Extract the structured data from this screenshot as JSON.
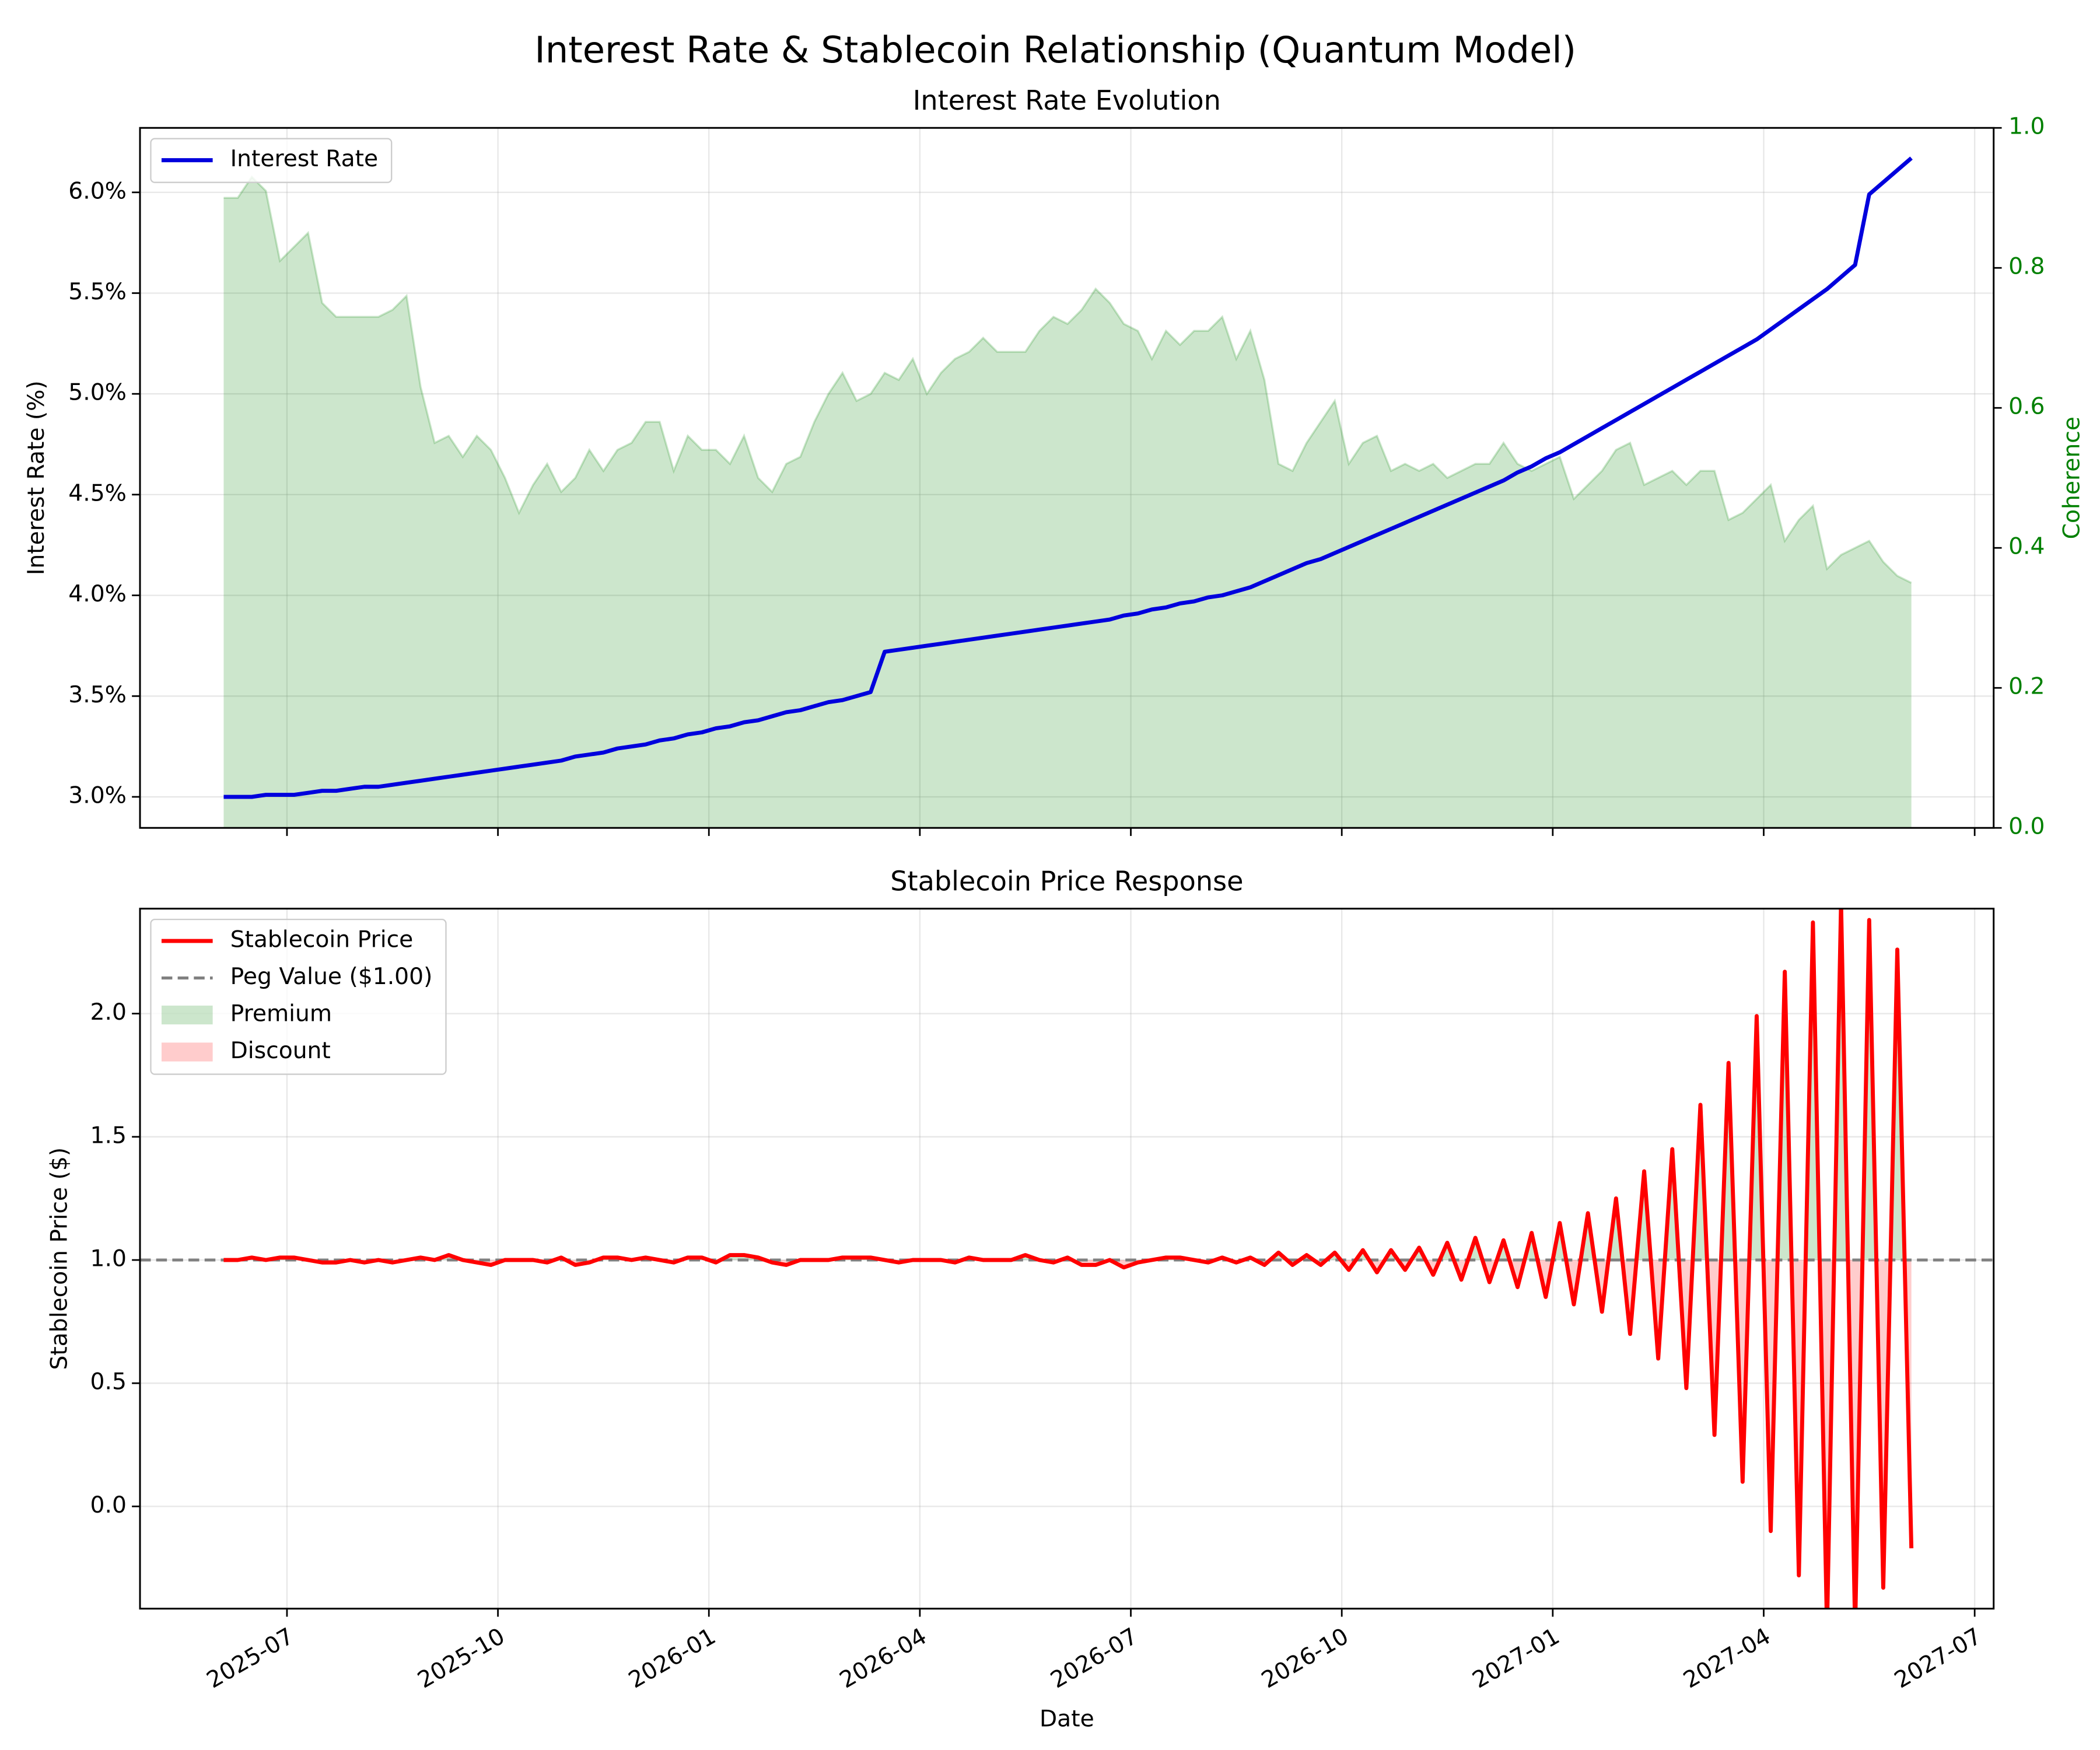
{
  "title": "Interest Rate & Stablecoin Relationship (Quantum Model)",
  "chart_data": [
    {
      "type": "line",
      "title": "Interest Rate Evolution",
      "y_label": "Interest Rate (%)",
      "y2_label": "Coherence",
      "ylim": [
        2.846,
        6.32
      ],
      "yticks": [
        {
          "value": 3.0,
          "label": "3.0%"
        },
        {
          "value": 3.5,
          "label": "3.5%"
        },
        {
          "value": 4.0,
          "label": "4.0%"
        },
        {
          "value": 4.5,
          "label": "4.5%"
        },
        {
          "value": 5.0,
          "label": "5.0%"
        },
        {
          "value": 5.5,
          "label": "5.5%"
        },
        {
          "value": 6.0,
          "label": "6.0%"
        }
      ],
      "y2lim": [
        0,
        1
      ],
      "y2ticks": [
        {
          "value": 0,
          "label": "0.0"
        },
        0.2,
        0.4,
        0.6,
        0.8,
        {
          "value": 1,
          "label": "1.0"
        }
      ],
      "y2_color": "#008000",
      "grid": true,
      "legend": "upper left",
      "series": [
        {
          "name": "Interest Rate",
          "color": "#0000dd",
          "values": [
            3.0,
            3.0,
            3.0,
            3.01,
            3.01,
            3.01,
            3.02,
            3.03,
            3.03,
            3.04,
            3.05,
            3.05,
            3.06,
            3.07,
            3.08,
            3.09,
            3.1,
            3.11,
            3.12,
            3.13,
            3.14,
            3.15,
            3.16,
            3.17,
            3.18,
            3.2,
            3.21,
            3.22,
            3.24,
            3.25,
            3.26,
            3.28,
            3.29,
            3.31,
            3.32,
            3.34,
            3.35,
            3.37,
            3.38,
            3.4,
            3.42,
            3.43,
            3.45,
            3.47,
            3.48,
            3.5,
            3.52,
            3.72,
            3.73,
            3.74,
            3.75,
            3.76,
            3.77,
            3.78,
            3.79,
            3.8,
            3.81,
            3.82,
            3.83,
            3.84,
            3.85,
            3.86,
            3.87,
            3.88,
            3.9,
            3.91,
            3.93,
            3.94,
            3.96,
            3.97,
            3.99,
            4.0,
            4.02,
            4.04,
            4.07,
            4.1,
            4.13,
            4.16,
            4.18,
            4.21,
            4.24,
            4.27,
            4.3,
            4.33,
            4.36,
            4.39,
            4.42,
            4.45,
            4.48,
            4.51,
            4.54,
            4.57,
            4.61,
            4.64,
            4.68,
            4.71,
            4.75,
            4.79,
            4.83,
            4.87,
            4.91,
            4.95,
            4.99,
            5.03,
            5.07,
            5.11,
            5.15,
            5.19,
            5.23,
            5.27,
            5.32,
            5.37,
            5.42,
            5.47,
            5.52,
            5.58,
            5.64,
            5.99,
            6.05,
            6.11,
            6.17
          ]
        },
        {
          "type": "area",
          "axis": "y2",
          "color": "#008000",
          "values": [
            0.9,
            0.9,
            0.93,
            0.91,
            0.81,
            0.83,
            0.85,
            0.75,
            0.73,
            0.73,
            0.73,
            0.73,
            0.74,
            0.76,
            0.63,
            0.55,
            0.56,
            0.53,
            0.56,
            0.54,
            0.5,
            0.45,
            0.49,
            0.52,
            0.48,
            0.5,
            0.54,
            0.51,
            0.54,
            0.55,
            0.58,
            0.58,
            0.51,
            0.56,
            0.54,
            0.54,
            0.52,
            0.56,
            0.5,
            0.48,
            0.52,
            0.53,
            0.58,
            0.62,
            0.65,
            0.61,
            0.62,
            0.65,
            0.64,
            0.67,
            0.62,
            0.65,
            0.67,
            0.68,
            0.7,
            0.68,
            0.68,
            0.68,
            0.71,
            0.73,
            0.72,
            0.74,
            0.77,
            0.75,
            0.72,
            0.71,
            0.67,
            0.71,
            0.69,
            0.71,
            0.71,
            0.73,
            0.67,
            0.71,
            0.64,
            0.52,
            0.51,
            0.55,
            0.58,
            0.61,
            0.52,
            0.55,
            0.56,
            0.51,
            0.52,
            0.51,
            0.52,
            0.5,
            0.51,
            0.52,
            0.52,
            0.55,
            0.52,
            0.51,
            0.52,
            0.53,
            0.47,
            0.49,
            0.51,
            0.54,
            0.55,
            0.49,
            0.5,
            0.51,
            0.49,
            0.51,
            0.51,
            0.44,
            0.45,
            0.47,
            0.49,
            0.41,
            0.44,
            0.46,
            0.37,
            0.39,
            0.4,
            0.41,
            0.38,
            0.36,
            0.35
          ]
        }
      ]
    },
    {
      "type": "line",
      "title": "Stablecoin Price Response",
      "x_label": "Date",
      "y_label": "Stablecoin Price ($)",
      "x": [
        -0.9,
        -0.7,
        -0.5,
        -0.3,
        -0.1,
        0.1,
        0.3,
        0.5,
        0.7,
        0.9,
        1.1,
        1.3,
        1.5,
        1.7,
        1.9,
        2.1,
        2.3,
        2.5,
        2.7,
        2.9,
        3.1,
        3.3,
        3.5,
        3.7,
        3.9,
        4.1,
        4.3,
        4.5,
        4.7,
        4.9,
        5.1,
        5.3,
        5.5,
        5.7,
        5.9,
        6.1,
        6.3,
        6.5,
        6.7,
        6.9,
        7.1,
        7.3,
        7.5,
        7.7,
        7.9,
        8.1,
        8.3,
        8.5,
        8.7,
        8.9,
        9.1,
        9.3,
        9.5,
        9.7,
        9.9,
        10.1,
        10.3,
        10.5,
        10.7,
        10.9,
        11.1,
        11.3,
        11.5,
        11.7,
        11.9,
        12.1,
        12.3,
        12.5,
        12.7,
        12.9,
        13.1,
        13.3,
        13.5,
        13.7,
        13.9,
        14.1,
        14.3,
        14.5,
        14.7,
        14.9,
        15.1,
        15.3,
        15.5,
        15.7,
        15.9,
        16.1,
        16.3,
        16.5,
        16.7,
        16.9,
        17.1,
        17.3,
        17.5,
        17.7,
        17.9,
        18.1,
        18.3,
        18.5,
        18.7,
        18.9,
        19.1,
        19.3,
        19.5,
        19.7,
        19.9,
        20.1,
        20.3,
        20.5,
        20.7,
        20.9,
        21.1,
        21.3,
        21.5,
        21.7,
        21.9,
        22.1,
        22.3,
        22.5,
        22.7,
        22.9,
        23.1
      ],
      "xlim": [
        -2.09,
        24.27
      ],
      "xticks": [
        {
          "value": 0,
          "label": "2025-07"
        },
        {
          "value": 3,
          "label": "2025-10"
        },
        {
          "value": 6,
          "label": "2026-01"
        },
        {
          "value": 9,
          "label": "2026-04"
        },
        {
          "value": 12,
          "label": "2026-07"
        },
        {
          "value": 15,
          "label": "2026-10"
        },
        {
          "value": 18,
          "label": "2027-01"
        },
        {
          "value": 21,
          "label": "2027-04"
        },
        {
          "value": 24,
          "label": "2027-07"
        }
      ],
      "ylim": [
        -0.415,
        2.426
      ],
      "yticks": [
        {
          "value": 0,
          "label": "0.0"
        },
        0.5,
        {
          "value": 1,
          "label": "1.0"
        },
        1.5,
        {
          "value": 2,
          "label": "2.0"
        }
      ],
      "grid": true,
      "legend": "upper left",
      "series": [
        {
          "name": "Stablecoin Price",
          "color": "#ff0000",
          "values": [
            1.0,
            1.0,
            1.01,
            1.0,
            1.01,
            1.01,
            1.0,
            0.99,
            0.99,
            1.0,
            0.99,
            1.0,
            0.99,
            1.0,
            1.01,
            1.0,
            1.02,
            1.0,
            0.99,
            0.98,
            1.0,
            1.0,
            1.0,
            0.99,
            1.01,
            0.98,
            0.99,
            1.01,
            1.01,
            1.0,
            1.01,
            1.0,
            0.99,
            1.01,
            1.01,
            0.99,
            1.02,
            1.02,
            1.01,
            0.99,
            0.98,
            1.0,
            1.0,
            1.0,
            1.01,
            1.01,
            1.01,
            1.0,
            0.99,
            1.0,
            1.0,
            1.0,
            0.99,
            1.01,
            1.0,
            1.0,
            1.0,
            1.02,
            1.0,
            0.99,
            1.01,
            0.98,
            0.98,
            1.0,
            0.97,
            0.99,
            1.0,
            1.01,
            1.01,
            1.0,
            0.99,
            1.01,
            0.99,
            1.01,
            0.98,
            1.03,
            0.98,
            1.02,
            0.98,
            1.03,
            0.96,
            1.04,
            0.95,
            1.04,
            0.96,
            1.05,
            0.94,
            1.07,
            0.92,
            1.09,
            0.91,
            1.08,
            0.89,
            1.11,
            0.85,
            1.15,
            0.82,
            1.19,
            0.79,
            1.25,
            0.7,
            1.36,
            0.6,
            1.45,
            0.48,
            1.63,
            0.29,
            1.8,
            0.1,
            1.99,
            -0.1,
            2.17,
            -0.28,
            2.37,
            -0.5,
            2.45,
            -0.5,
            2.38,
            -0.33,
            2.26,
            -0.17
          ]
        }
      ],
      "reference_line": {
        "name": "Peg Value ($1.00)",
        "value": 1.0,
        "color": "#808080"
      },
      "fill": [
        {
          "name": "Premium",
          "color": "#008000"
        },
        {
          "name": "Discount",
          "color": "#ff0000"
        }
      ]
    }
  ]
}
